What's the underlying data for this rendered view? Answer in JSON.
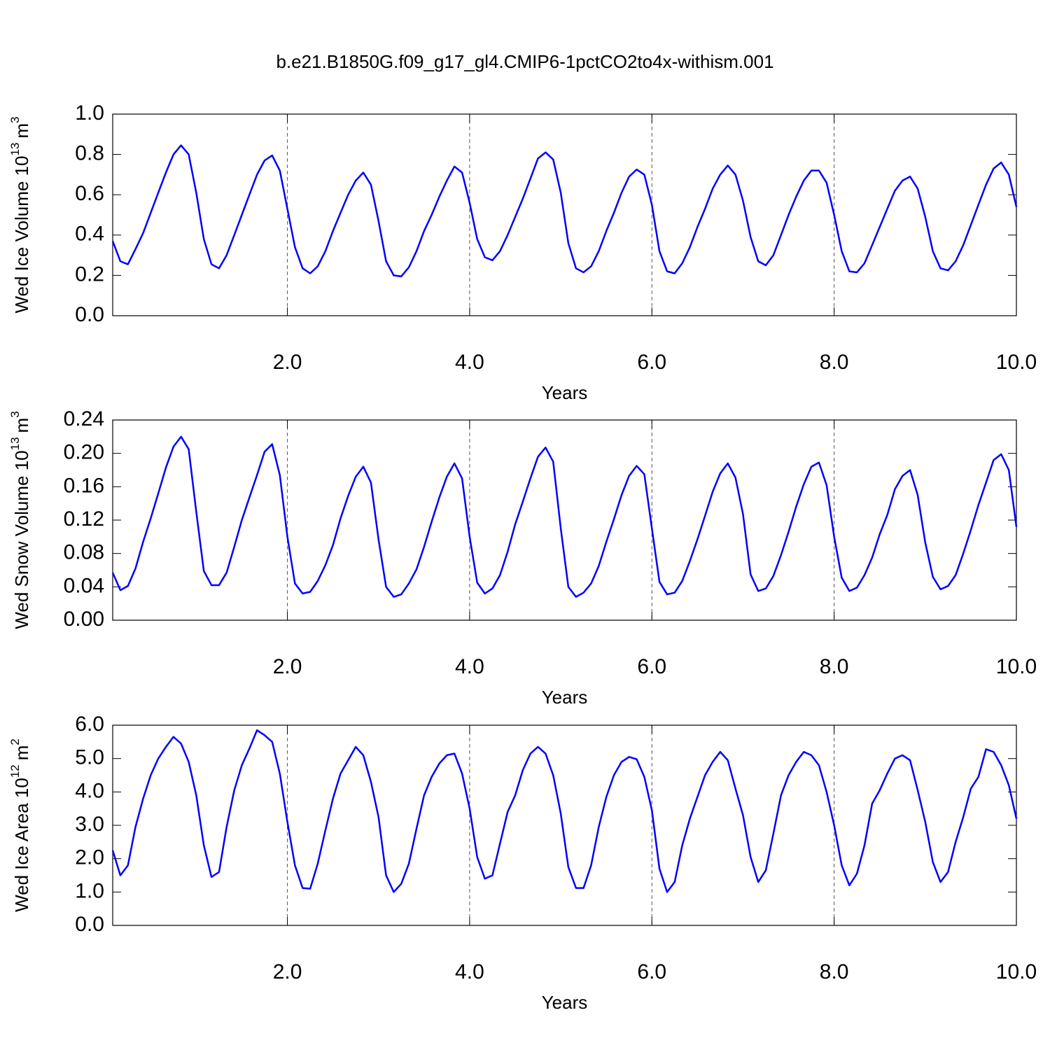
{
  "chart_data": [
    {
      "type": "line",
      "title": "b.e21.B1850G.f09_g17_gl4.CMIP6-1pctCO2to4x-withism.001",
      "xlabel": "Years",
      "ylabel": [
        "Wed Ice Volume 10",
        "13",
        "m",
        "3"
      ],
      "xlim": [
        0.083,
        10
      ],
      "ylim": [
        0,
        1
      ],
      "xticks": [
        {
          "value": 2,
          "label": "2.0"
        },
        {
          "value": 4,
          "label": "4.0"
        },
        {
          "value": 6,
          "label": "6.0"
        },
        {
          "value": 8,
          "label": "8.0"
        },
        {
          "value": 10,
          "label": "10.0"
        }
      ],
      "yticks": [
        {
          "value": 0,
          "label": "0.0"
        },
        0.2,
        0.4,
        0.6,
        0.8,
        {
          "value": 1,
          "label": "1.0"
        }
      ],
      "grid": true,
      "color": "#0000ff",
      "x": [
        0.083,
        0.167,
        0.25,
        0.333,
        0.417,
        0.5,
        0.583,
        0.667,
        0.75,
        0.833,
        0.917,
        1,
        1.083,
        1.167,
        1.25,
        1.333,
        1.417,
        1.5,
        1.583,
        1.667,
        1.75,
        1.833,
        1.917,
        2,
        2.083,
        2.167,
        2.25,
        2.333,
        2.417,
        2.5,
        2.583,
        2.667,
        2.75,
        2.833,
        2.917,
        3,
        3.083,
        3.167,
        3.25,
        3.333,
        3.417,
        3.5,
        3.583,
        3.667,
        3.75,
        3.833,
        3.917,
        4,
        4.083,
        4.167,
        4.25,
        4.333,
        4.417,
        4.5,
        4.583,
        4.667,
        4.75,
        4.833,
        4.917,
        5,
        5.083,
        5.167,
        5.25,
        5.333,
        5.417,
        5.5,
        5.583,
        5.667,
        5.75,
        5.833,
        5.917,
        6,
        6.083,
        6.167,
        6.25,
        6.333,
        6.417,
        6.5,
        6.583,
        6.667,
        6.75,
        6.833,
        6.917,
        7,
        7.083,
        7.167,
        7.25,
        7.333,
        7.417,
        7.5,
        7.583,
        7.667,
        7.75,
        7.833,
        7.917,
        8,
        8.083,
        8.167,
        8.25,
        8.333,
        8.417,
        8.5,
        8.583,
        8.667,
        8.75,
        8.833,
        8.917,
        9,
        9.083,
        9.167,
        9.25,
        9.333,
        9.417,
        9.5,
        9.583,
        9.667,
        9.75,
        9.833,
        9.917,
        10
      ],
      "values": [
        0.37,
        0.27,
        0.255,
        0.33,
        0.41,
        0.51,
        0.61,
        0.71,
        0.8,
        0.845,
        0.8,
        0.61,
        0.38,
        0.255,
        0.235,
        0.3,
        0.4,
        0.5,
        0.6,
        0.7,
        0.77,
        0.795,
        0.72,
        0.53,
        0.34,
        0.235,
        0.21,
        0.245,
        0.32,
        0.42,
        0.51,
        0.6,
        0.67,
        0.71,
        0.65,
        0.47,
        0.27,
        0.2,
        0.195,
        0.24,
        0.32,
        0.42,
        0.5,
        0.59,
        0.67,
        0.74,
        0.71,
        0.56,
        0.38,
        0.29,
        0.275,
        0.32,
        0.4,
        0.49,
        0.58,
        0.68,
        0.78,
        0.81,
        0.775,
        0.61,
        0.36,
        0.235,
        0.215,
        0.245,
        0.32,
        0.42,
        0.51,
        0.61,
        0.69,
        0.725,
        0.7,
        0.55,
        0.32,
        0.22,
        0.21,
        0.26,
        0.34,
        0.44,
        0.53,
        0.63,
        0.7,
        0.745,
        0.7,
        0.57,
        0.39,
        0.27,
        0.25,
        0.3,
        0.4,
        0.5,
        0.59,
        0.67,
        0.72,
        0.72,
        0.66,
        0.5,
        0.32,
        0.22,
        0.215,
        0.26,
        0.35,
        0.44,
        0.53,
        0.62,
        0.67,
        0.69,
        0.63,
        0.49,
        0.32,
        0.235,
        0.225,
        0.27,
        0.35,
        0.45,
        0.55,
        0.65,
        0.73,
        0.76,
        0.7,
        0.54
      ]
    },
    {
      "type": "line",
      "xlabel": "Years",
      "ylabel": [
        "Wed Snow Volume 10",
        "13",
        "m",
        "3"
      ],
      "xlim": [
        0.083,
        10
      ],
      "ylim": [
        0,
        0.24
      ],
      "xticks": [
        {
          "value": 2,
          "label": "2.0"
        },
        {
          "value": 4,
          "label": "4.0"
        },
        {
          "value": 6,
          "label": "6.0"
        },
        {
          "value": 8,
          "label": "8.0"
        },
        {
          "value": 10,
          "label": "10.0"
        }
      ],
      "yticks": [
        {
          "value": 0,
          "label": "0.00"
        },
        0.04,
        0.08,
        0.12,
        0.16,
        {
          "value": 0.2,
          "label": "0.20"
        },
        0.24
      ],
      "grid": true,
      "color": "#0000ff",
      "x": [
        0.083,
        0.167,
        0.25,
        0.333,
        0.417,
        0.5,
        0.583,
        0.667,
        0.75,
        0.833,
        0.917,
        1,
        1.083,
        1.167,
        1.25,
        1.333,
        1.417,
        1.5,
        1.583,
        1.667,
        1.75,
        1.833,
        1.917,
        2,
        2.083,
        2.167,
        2.25,
        2.333,
        2.417,
        2.5,
        2.583,
        2.667,
        2.75,
        2.833,
        2.917,
        3,
        3.083,
        3.167,
        3.25,
        3.333,
        3.417,
        3.5,
        3.583,
        3.667,
        3.75,
        3.833,
        3.917,
        4,
        4.083,
        4.167,
        4.25,
        4.333,
        4.417,
        4.5,
        4.583,
        4.667,
        4.75,
        4.833,
        4.917,
        5,
        5.083,
        5.167,
        5.25,
        5.333,
        5.417,
        5.5,
        5.583,
        5.667,
        5.75,
        5.833,
        5.917,
        6,
        6.083,
        6.167,
        6.25,
        6.333,
        6.417,
        6.5,
        6.583,
        6.667,
        6.75,
        6.833,
        6.917,
        7,
        7.083,
        7.167,
        7.25,
        7.333,
        7.417,
        7.5,
        7.583,
        7.667,
        7.75,
        7.833,
        7.917,
        8,
        8.083,
        8.167,
        8.25,
        8.333,
        8.417,
        8.5,
        8.583,
        8.667,
        8.75,
        8.833,
        8.917,
        9,
        9.083,
        9.167,
        9.25,
        9.333,
        9.417,
        9.5,
        9.583,
        9.667,
        9.75,
        9.833,
        9.917,
        10
      ],
      "values": [
        0.057,
        0.036,
        0.041,
        0.062,
        0.094,
        0.122,
        0.152,
        0.183,
        0.208,
        0.22,
        0.205,
        0.13,
        0.059,
        0.042,
        0.042,
        0.057,
        0.088,
        0.12,
        0.147,
        0.174,
        0.202,
        0.211,
        0.174,
        0.1,
        0.044,
        0.032,
        0.034,
        0.047,
        0.066,
        0.09,
        0.122,
        0.149,
        0.172,
        0.184,
        0.165,
        0.097,
        0.04,
        0.028,
        0.031,
        0.044,
        0.061,
        0.088,
        0.118,
        0.147,
        0.172,
        0.188,
        0.17,
        0.1,
        0.045,
        0.032,
        0.038,
        0.054,
        0.082,
        0.115,
        0.142,
        0.17,
        0.196,
        0.207,
        0.19,
        0.11,
        0.04,
        0.028,
        0.033,
        0.044,
        0.065,
        0.094,
        0.121,
        0.15,
        0.173,
        0.185,
        0.175,
        0.11,
        0.046,
        0.031,
        0.033,
        0.047,
        0.071,
        0.097,
        0.125,
        0.154,
        0.176,
        0.188,
        0.171,
        0.127,
        0.055,
        0.035,
        0.038,
        0.053,
        0.078,
        0.106,
        0.136,
        0.163,
        0.184,
        0.189,
        0.162,
        0.1,
        0.051,
        0.035,
        0.039,
        0.054,
        0.075,
        0.103,
        0.126,
        0.157,
        0.173,
        0.18,
        0.15,
        0.093,
        0.052,
        0.037,
        0.041,
        0.054,
        0.08,
        0.108,
        0.138,
        0.165,
        0.192,
        0.199,
        0.18,
        0.112
      ]
    },
    {
      "type": "line",
      "xlabel": "Years",
      "ylabel": [
        "Wed Ice Area 10",
        "12",
        "m",
        "2"
      ],
      "xlim": [
        0.083,
        10
      ],
      "ylim": [
        0,
        6
      ],
      "xticks": [
        {
          "value": 2,
          "label": "2.0"
        },
        {
          "value": 4,
          "label": "4.0"
        },
        {
          "value": 6,
          "label": "6.0"
        },
        {
          "value": 8,
          "label": "8.0"
        },
        {
          "value": 10,
          "label": "10.0"
        }
      ],
      "yticks": [
        {
          "value": 0,
          "label": "0.0"
        },
        {
          "value": 1,
          "label": "1.0"
        },
        {
          "value": 2,
          "label": "2.0"
        },
        {
          "value": 3,
          "label": "3.0"
        },
        {
          "value": 4,
          "label": "4.0"
        },
        {
          "value": 5,
          "label": "5.0"
        },
        {
          "value": 6,
          "label": "6.0"
        }
      ],
      "grid": true,
      "color": "#0000ff",
      "x": [
        0.083,
        0.167,
        0.25,
        0.333,
        0.417,
        0.5,
        0.583,
        0.667,
        0.75,
        0.833,
        0.917,
        1,
        1.083,
        1.167,
        1.25,
        1.333,
        1.417,
        1.5,
        1.583,
        1.667,
        1.75,
        1.833,
        1.917,
        2,
        2.083,
        2.167,
        2.25,
        2.333,
        2.417,
        2.5,
        2.583,
        2.667,
        2.75,
        2.833,
        2.917,
        3,
        3.083,
        3.167,
        3.25,
        3.333,
        3.417,
        3.5,
        3.583,
        3.667,
        3.75,
        3.833,
        3.917,
        4,
        4.083,
        4.167,
        4.25,
        4.333,
        4.417,
        4.5,
        4.583,
        4.667,
        4.75,
        4.833,
        4.917,
        5,
        5.083,
        5.167,
        5.25,
        5.333,
        5.417,
        5.5,
        5.583,
        5.667,
        5.75,
        5.833,
        5.917,
        6,
        6.083,
        6.167,
        6.25,
        6.333,
        6.417,
        6.5,
        6.583,
        6.667,
        6.75,
        6.833,
        6.917,
        7,
        7.083,
        7.167,
        7.25,
        7.333,
        7.417,
        7.5,
        7.583,
        7.667,
        7.75,
        7.833,
        7.917,
        8,
        8.083,
        8.167,
        8.25,
        8.333,
        8.417,
        8.5,
        8.583,
        8.667,
        8.75,
        8.833,
        8.917,
        9,
        9.083,
        9.167,
        9.25,
        9.333,
        9.417,
        9.5,
        9.583,
        9.667,
        9.75,
        9.833,
        9.917,
        10
      ],
      "values": [
        2.25,
        1.5,
        1.8,
        2.95,
        3.8,
        4.5,
        5.0,
        5.35,
        5.65,
        5.45,
        4.9,
        3.9,
        2.4,
        1.45,
        1.6,
        2.95,
        4.05,
        4.8,
        5.3,
        5.85,
        5.7,
        5.5,
        4.55,
        3.1,
        1.8,
        1.12,
        1.1,
        1.85,
        2.85,
        3.8,
        4.55,
        4.95,
        5.35,
        5.1,
        4.3,
        3.25,
        1.5,
        1.0,
        1.25,
        1.85,
        2.9,
        3.9,
        4.45,
        4.85,
        5.1,
        5.15,
        4.55,
        3.5,
        2.05,
        1.4,
        1.5,
        2.45,
        3.4,
        3.9,
        4.65,
        5.15,
        5.35,
        5.15,
        4.5,
        3.35,
        1.75,
        1.12,
        1.12,
        1.8,
        2.95,
        3.85,
        4.5,
        4.9,
        5.05,
        4.98,
        4.45,
        3.45,
        1.7,
        1.0,
        1.3,
        2.4,
        3.2,
        3.85,
        4.5,
        4.9,
        5.2,
        4.95,
        4.1,
        3.3,
        2.05,
        1.3,
        1.65,
        2.75,
        3.9,
        4.5,
        4.9,
        5.2,
        5.1,
        4.8,
        4.0,
        3.0,
        1.8,
        1.2,
        1.55,
        2.4,
        3.65,
        4.05,
        4.55,
        5.0,
        5.1,
        4.95,
        4.05,
        3.1,
        1.9,
        1.3,
        1.6,
        2.5,
        3.25,
        4.1,
        4.45,
        5.28,
        5.2,
        4.8,
        4.2,
        3.2
      ]
    }
  ]
}
